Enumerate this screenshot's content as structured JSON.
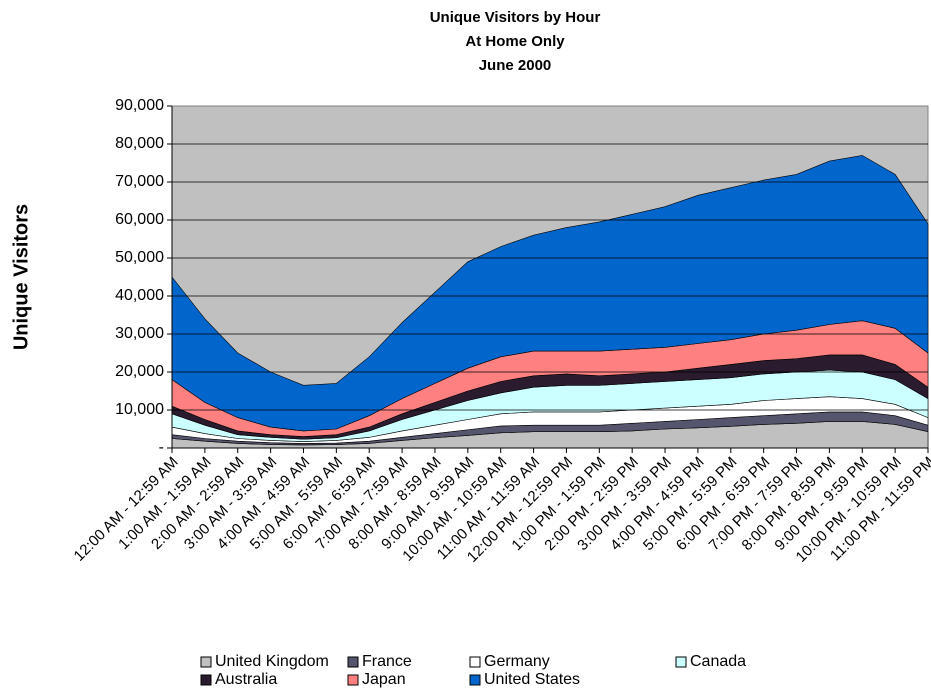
{
  "chart_data": {
    "type": "stacked_area",
    "title": [
      "Unique Visitors by Hour",
      "At Home Only",
      "June 2000"
    ],
    "y_label": "Unique Visitors",
    "categories": [
      "12:00 AM - 12:59 AM",
      "1:00 AM - 1:59 AM",
      "2:00 AM - 2:59 AM",
      "3:00 AM - 3:59 AM",
      "4:00 AM - 4:59 AM",
      "5:00 AM - 5:59 AM",
      "6:00 AM - 6:59 AM",
      "7:00 AM - 7:59 AM",
      "8:00 AM - 8:59 AM",
      "9:00 AM - 9:59 AM",
      "10:00 AM - 10:59 AM",
      "11:00 AM - 11:59 AM",
      "12:00 PM - 12:59 PM",
      "1:00 PM - 1:59 PM",
      "2:00 PM - 2:59 PM",
      "3:00 PM - 3:59 PM",
      "4:00 PM - 4:59 PM",
      "5:00 PM - 5:59 PM",
      "6:00 PM - 6:59 PM",
      "7:00 PM - 7:59 PM",
      "8:00 PM - 8:59 PM",
      "9:00 PM - 9:59 PM",
      "10:00 PM - 10:59 PM",
      "11:00 PM - 11:59 PM"
    ],
    "series": [
      {
        "name": "United Kingdom",
        "color": "#c0c0c0",
        "values": [
          2500,
          1800,
          1200,
          900,
          800,
          900,
          1200,
          2000,
          2700,
          3300,
          4000,
          4300,
          4300,
          4300,
          4500,
          5000,
          5300,
          5700,
          6200,
          6500,
          7000,
          7000,
          6200,
          4300
        ]
      },
      {
        "name": "France",
        "color": "#55556e",
        "values": [
          1000,
          700,
          600,
          500,
          400,
          400,
          600,
          800,
          1100,
          1500,
          1800,
          1700,
          1700,
          1700,
          2000,
          2000,
          2200,
          2300,
          2300,
          2500,
          2500,
          2500,
          2300,
          1700
        ]
      },
      {
        "name": "Germany",
        "color": "#ffffff",
        "values": [
          2000,
          1300,
          700,
          600,
          500,
          700,
          1000,
          1700,
          2200,
          2700,
          3200,
          3500,
          3500,
          3500,
          3500,
          3500,
          3500,
          3500,
          4000,
          4000,
          4000,
          3500,
          3000,
          2000
        ]
      },
      {
        "name": "Canada",
        "color": "#ccffff",
        "values": [
          3500,
          2200,
          1000,
          800,
          600,
          700,
          1700,
          3000,
          4000,
          5000,
          5500,
          6500,
          7000,
          7000,
          7000,
          7000,
          7000,
          7000,
          7000,
          7000,
          7000,
          7000,
          6500,
          5000
        ]
      },
      {
        "name": "Australia",
        "color": "#2b1b2e",
        "values": [
          2000,
          1500,
          1000,
          700,
          700,
          800,
          1000,
          1500,
          2000,
          2500,
          3000,
          3000,
          3000,
          2500,
          2500,
          2500,
          3000,
          3500,
          3500,
          3500,
          4000,
          4500,
          4000,
          3000
        ]
      },
      {
        "name": "Japan",
        "color": "#ff8080",
        "values": [
          7000,
          4500,
          3500,
          2000,
          1500,
          1500,
          3000,
          4000,
          5000,
          6000,
          6500,
          6500,
          6000,
          6500,
          6500,
          6500,
          6500,
          6500,
          7000,
          7500,
          8000,
          9000,
          9500,
          9000
        ]
      },
      {
        "name": "United States",
        "color": "#0066cc",
        "values": [
          27000,
          22000,
          17000,
          14500,
          12000,
          12000,
          15500,
          20000,
          24000,
          28000,
          29000,
          30500,
          32500,
          34000,
          35500,
          37000,
          39000,
          40000,
          40500,
          41000,
          43000,
          43500,
          40500,
          34000
        ]
      }
    ],
    "ylim": [
      0,
      90000
    ],
    "yticks": [
      {
        "value": 0,
        "label": "-"
      },
      {
        "value": 10000,
        "label": "10,000"
      },
      {
        "value": 20000,
        "label": "20,000"
      },
      {
        "value": 30000,
        "label": "30,000"
      },
      {
        "value": 40000,
        "label": "40,000"
      },
      {
        "value": 50000,
        "label": "50,000"
      },
      {
        "value": 60000,
        "label": "60,000"
      },
      {
        "value": 70000,
        "label": "70,000"
      },
      {
        "value": 80000,
        "label": "80,000"
      },
      {
        "value": 90000,
        "label": "90,000"
      }
    ],
    "grid": true,
    "plot_background": "#c0c0c0",
    "legend": "bottom"
  }
}
